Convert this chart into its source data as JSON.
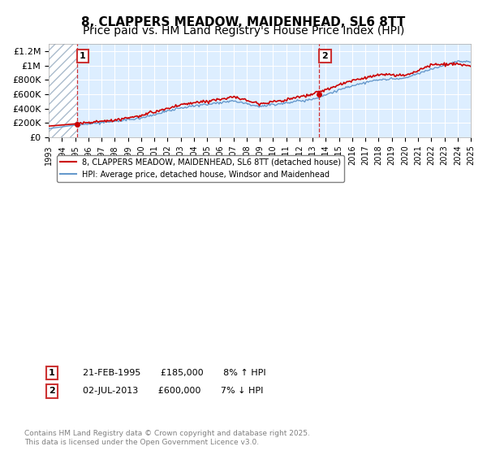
{
  "title": "8, CLAPPERS MEADOW, MAIDENHEAD, SL6 8TT",
  "subtitle": "Price paid vs. HM Land Registry's House Price Index (HPI)",
  "xlabel": "",
  "ylabel": "",
  "ylim": [
    0,
    1300000
  ],
  "yticks": [
    0,
    200000,
    400000,
    600000,
    800000,
    1000000,
    1200000
  ],
  "ytick_labels": [
    "£0",
    "£200K",
    "£400K",
    "£600K",
    "£800K",
    "£1M",
    "£1.2M"
  ],
  "x_start_year": 1993,
  "x_end_year": 2025,
  "transaction1_year": 1995.13,
  "transaction1_price": 185000,
  "transaction1_label": "1",
  "transaction2_year": 2013.5,
  "transaction2_price": 600000,
  "transaction2_label": "2",
  "legend_line1": "8, CLAPPERS MEADOW, MAIDENHEAD, SL6 8TT (detached house)",
  "legend_line2": "HPI: Average price, detached house, Windsor and Maidenhead",
  "annotation1": "1    21-FEB-1995    £185,000    8% ↑ HPI",
  "annotation2": "2    02-JUL-2013    £600,000    7% ↓ HPI",
  "footnote": "Contains HM Land Registry data © Crown copyright and database right 2025.\nThis data is licensed under the Open Government Licence v3.0.",
  "red_color": "#cc0000",
  "blue_color": "#6699cc",
  "hatch_color": "#ccddee",
  "background_color": "#ddeeff",
  "title_fontsize": 11,
  "subtitle_fontsize": 10
}
